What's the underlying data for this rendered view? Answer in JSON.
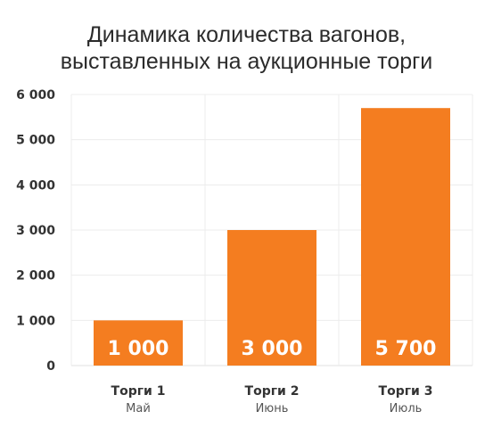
{
  "chart_data": {
    "type": "bar",
    "title_lines": [
      "Динамика количества вагонов,",
      "выставленных на аукционные торги"
    ],
    "categories": [
      "Торги 1",
      "Торги 2",
      "Торги 3"
    ],
    "subcategories": [
      "Май",
      "Июнь",
      "Июль"
    ],
    "values": [
      1000,
      3000,
      5700
    ],
    "value_labels": [
      "1 000",
      "3 000",
      "5 700"
    ],
    "y_ticks": [
      0,
      1000,
      2000,
      3000,
      4000,
      5000,
      6000
    ],
    "y_tick_labels": [
      "0",
      "1 000",
      "2 000",
      "3 000",
      "4 000",
      "5 000",
      "6 000"
    ],
    "ylim": [
      0,
      6000
    ],
    "grid": true,
    "legend": "none",
    "bar_color": "#f47d20",
    "label_color": "#ffffff"
  }
}
